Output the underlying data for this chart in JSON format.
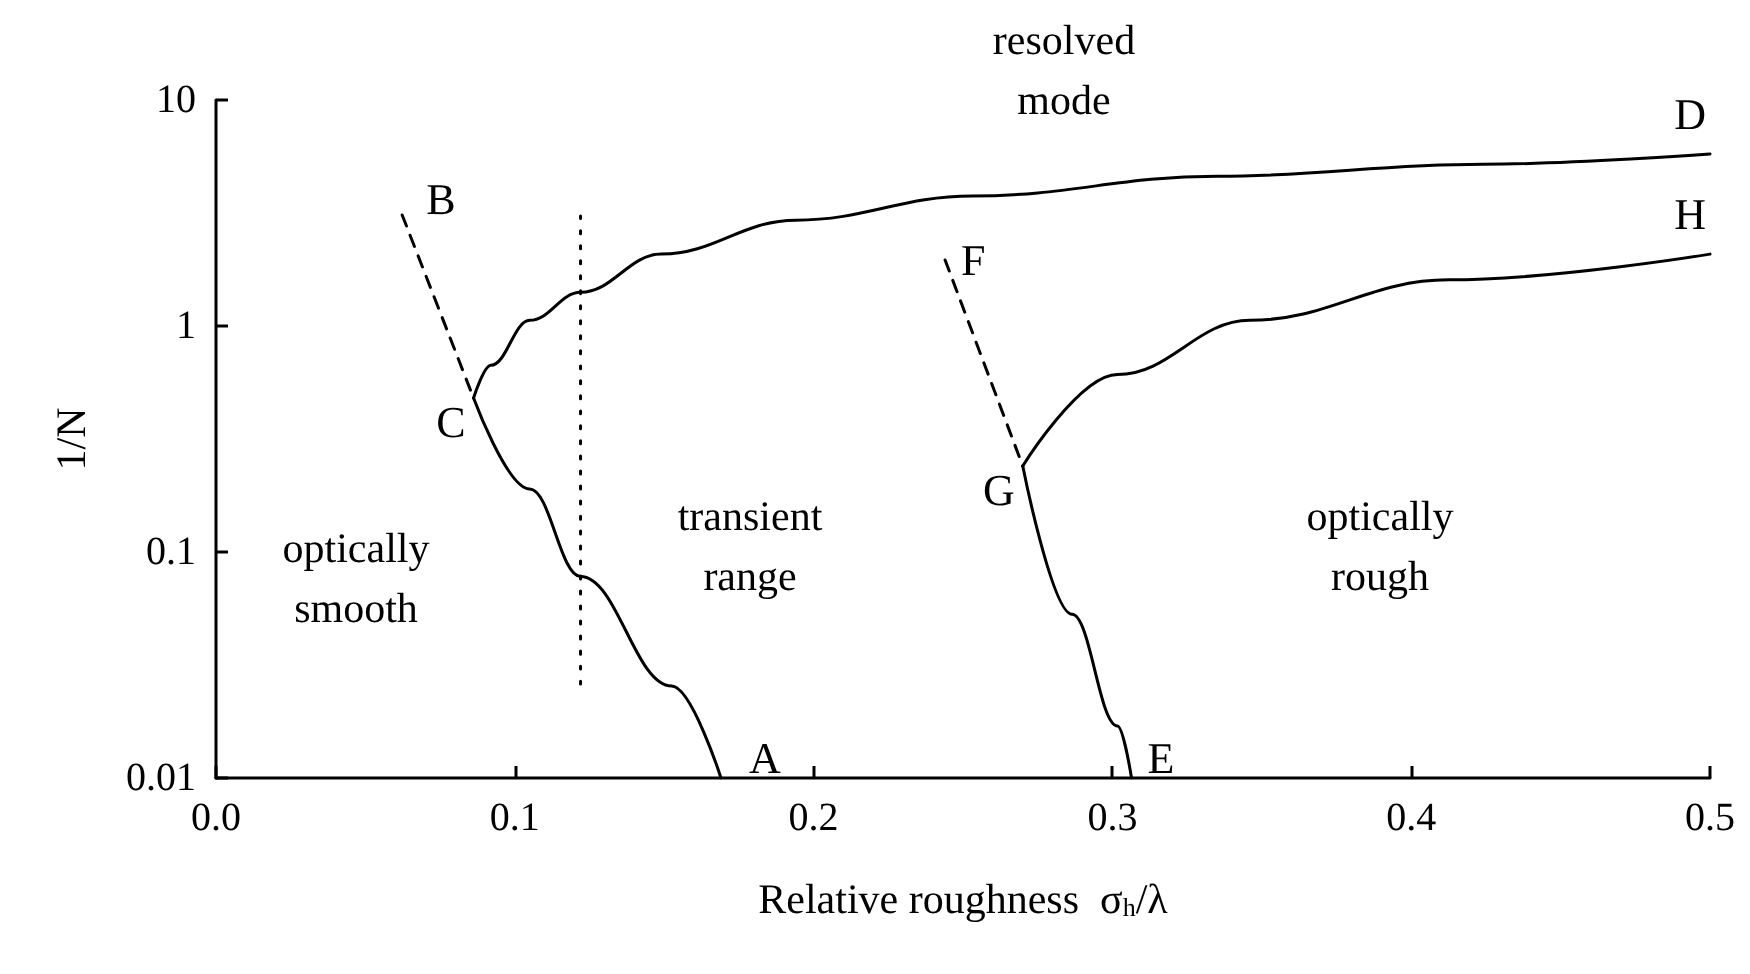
{
  "chart_data": {
    "type": "line",
    "xlabel": "Relative roughness  σ$_{h}$/λ",
    "ylabel": "1/N",
    "xlim": [
      0,
      0.5
    ],
    "xticks": [
      {
        "value": 0,
        "label": "0.0"
      },
      0.1,
      0.2,
      0.3,
      0.4,
      0.5
    ],
    "ylim": [
      0.01,
      10
    ],
    "yticks": [
      0.01,
      0.1,
      1,
      10
    ],
    "log": "y",
    "grid": false,
    "marker": "none",
    "series": [
      {
        "color": "#000000",
        "line_style": "solid",
        "x": [
          0.0862,
          0.105,
          0.122,
          0.1525,
          0.169
        ],
        "values": [
          0.48,
          0.19,
          0.078,
          0.0255,
          0.01
        ]
      },
      {
        "color": "#000000",
        "line_style": "dashed",
        "x": [
          0.0623,
          0.0862
        ],
        "values": [
          3.1,
          0.48
        ]
      },
      {
        "color": "#000000",
        "line_style": "solid",
        "x": [
          0.0862,
          0.092,
          0.105,
          0.122,
          0.149,
          0.194,
          0.253,
          0.335,
          0.424,
          0.5
        ],
        "values": [
          0.48,
          0.67,
          1.06,
          1.41,
          2.08,
          2.94,
          3.76,
          4.6,
          5.2,
          5.77
        ]
      },
      {
        "color": "#000000",
        "line_style": "dotted",
        "x": [
          0.122,
          0.122
        ],
        "values": [
          3.07,
          0.0245
        ]
      },
      {
        "color": "#000000",
        "line_style": "dashed",
        "x": [
          0.244,
          0.27
        ],
        "values": [
          1.96,
          0.24
        ]
      },
      {
        "color": "#000000",
        "line_style": "solid",
        "x": [
          0.27,
          0.2865,
          0.3017,
          0.3064
        ],
        "values": [
          0.24,
          0.053,
          0.017,
          0.01
        ]
      },
      {
        "color": "#000000",
        "line_style": "solid",
        "x": [
          0.27,
          0.3017,
          0.346,
          0.4125,
          0.5
        ],
        "values": [
          0.24,
          0.61,
          1.06,
          1.6,
          2.08
        ]
      }
    ],
    "annotations": [
      {
        "text": "A",
        "x": 0.169,
        "y": 0.01
      },
      {
        "text": "B",
        "x": 0.0623,
        "y": 3.1
      },
      {
        "text": "C",
        "x": 0.0862,
        "y": 0.48
      },
      {
        "text": "D",
        "x": 0.5,
        "y": 5.77
      },
      {
        "text": "E",
        "x": 0.3064,
        "y": 0.01
      },
      {
        "text": "F",
        "x": 0.244,
        "y": 1.96
      },
      {
        "text": "G",
        "x": 0.27,
        "y": 0.24
      },
      {
        "text": "H",
        "x": 0.5,
        "y": 2.08
      },
      "resolved\nmode",
      "transient\nrange",
      "optically\nsmooth",
      "optically\nrough"
    ]
  }
}
